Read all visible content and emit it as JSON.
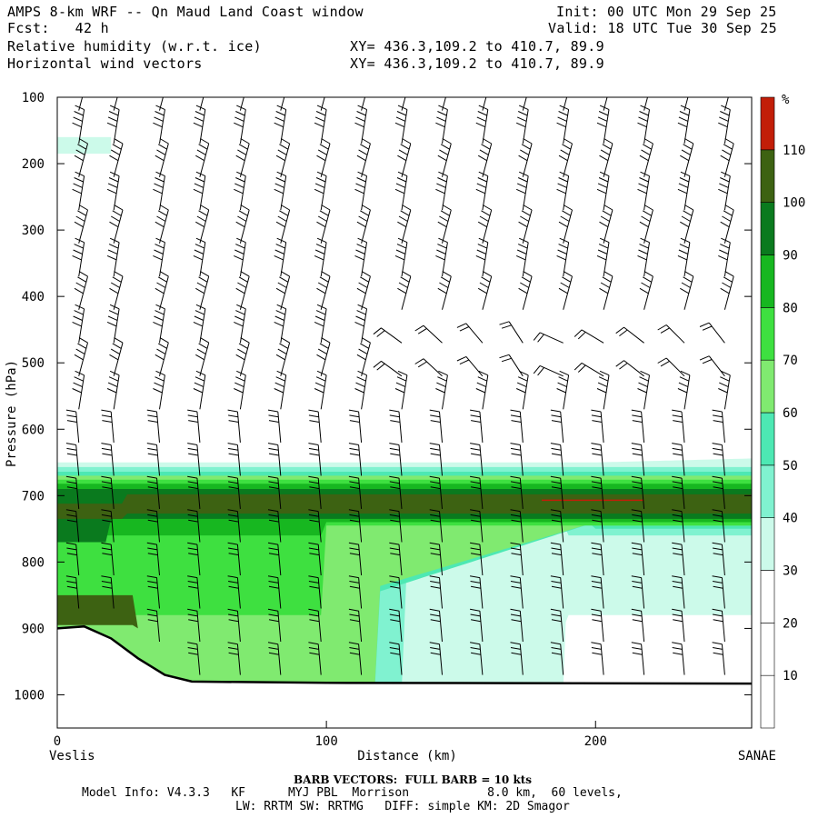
{
  "header": {
    "title": "AMPS 8-km WRF -- Qn Maud Land Coast window",
    "fcst": "Fcst:   42 h",
    "init": "Init: 00 UTC Mon 29 Sep 25",
    "valid": "Valid: 18 UTC Tue 30 Sep 25",
    "field1": "Relative humidity (w.r.t. ice)",
    "field2": "Horizontal wind vectors",
    "xy1": "XY= 436.3,109.2 to 410.7, 89.9",
    "xy2": "XY= 436.3,109.2 to 410.7, 89.9"
  },
  "footer": {
    "barb_note": "BARB VECTORS:  FULL BARB = 10 kts",
    "model_line1": "Model Info: V4.3.3   KF      MYJ PBL  Morrison           8.0 km,  60 levels,",
    "model_line2": "LW: RRTM SW: RRTMG   DIFF: simple KM: 2D Smagor"
  },
  "chart_data": {
    "type": "heatmap",
    "title": "Relative humidity (w.r.t. ice) cross-section with horizontal wind vectors",
    "xlabel": "Distance (km)",
    "ylabel": "Pressure (hPa)",
    "xlim": [
      0,
      258
    ],
    "ylim": [
      1050,
      100
    ],
    "x_ticks": [
      0,
      100,
      200
    ],
    "y_ticks": [
      100,
      200,
      300,
      400,
      500,
      600,
      700,
      800,
      900,
      1000
    ],
    "x_left_label": "Veslis",
    "x_right_label": "SANAE",
    "colorbar": {
      "unit": "%",
      "levels": [
        0,
        10,
        20,
        30,
        40,
        50,
        60,
        70,
        80,
        90,
        100,
        110,
        120
      ],
      "tick_labels": [
        10,
        20,
        30,
        40,
        50,
        60,
        70,
        80,
        90,
        100,
        110
      ],
      "colors": [
        "#ffffff",
        "#ffffff",
        "#ffffff",
        "#ccfaea",
        "#80f2d0",
        "#4de8b3",
        "#80ea70",
        "#3ee040",
        "#17b720",
        "#0a7a1e",
        "#3d6212",
        "#c21e08"
      ]
    },
    "rh_features": [
      {
        "name": "moist layer top",
        "pressure_hpa": 650,
        "rh_percent": 30
      },
      {
        "name": "max RH core",
        "pressure_hpa": 705,
        "rh_percent": 100
      },
      {
        "name": "dry tongue",
        "x_km": [
          190,
          258
        ],
        "pressure_hpa": [
          770,
          880
        ],
        "rh_percent": 30
      },
      {
        "name": "upper moist patch",
        "x_km": [
          0,
          20
        ],
        "pressure_hpa": [
          160,
          185
        ],
        "rh_percent": 30
      }
    ],
    "terrain_surface": [
      {
        "x": 0,
        "p": 900
      },
      {
        "x": 10,
        "p": 897
      },
      {
        "x": 20,
        "p": 915
      },
      {
        "x": 30,
        "p": 945
      },
      {
        "x": 40,
        "p": 970
      },
      {
        "x": 50,
        "p": 980
      },
      {
        "x": 100,
        "p": 982
      },
      {
        "x": 258,
        "p": 983
      }
    ],
    "wind_barbs": {
      "columns_km": [
        8,
        21,
        38,
        53,
        68,
        83,
        98,
        113,
        128,
        143,
        158,
        173,
        188,
        203,
        218,
        233,
        248
      ],
      "levels_hpa": [
        120,
        170,
        220,
        270,
        320,
        370,
        420,
        470,
        520,
        570,
        620,
        670,
        720,
        770,
        820,
        870,
        920,
        970
      ],
      "full_barb_kts": 10
    }
  }
}
